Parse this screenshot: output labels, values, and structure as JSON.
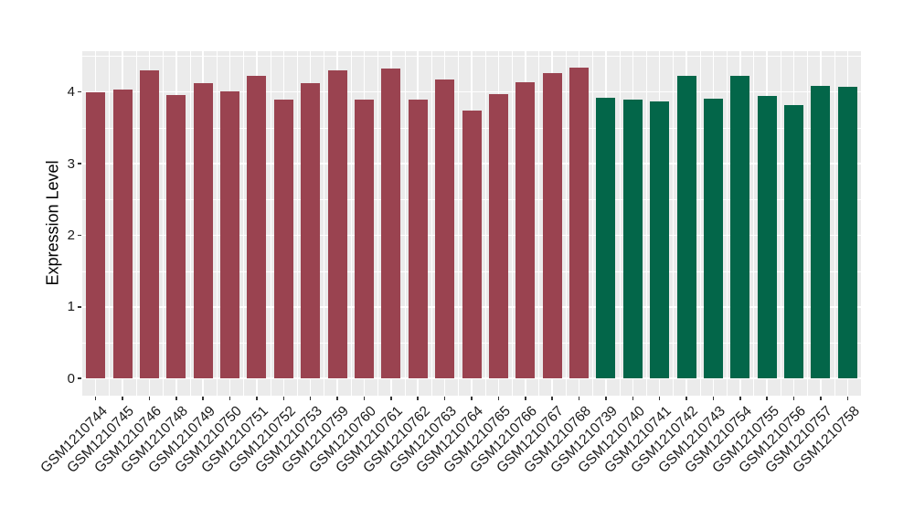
{
  "chart_data": {
    "type": "bar",
    "title": "",
    "xlabel": "",
    "ylabel": "Expression Level",
    "categories": [
      "GSM1210744",
      "GSM1210745",
      "GSM1210746",
      "GSM1210748",
      "GSM1210749",
      "GSM1210750",
      "GSM1210751",
      "GSM1210752",
      "GSM1210753",
      "GSM1210759",
      "GSM1210760",
      "GSM1210761",
      "GSM1210762",
      "GSM1210763",
      "GSM1210764",
      "GSM1210765",
      "GSM1210766",
      "GSM1210767",
      "GSM1210768",
      "GSM1210739",
      "GSM1210740",
      "GSM1210741",
      "GSM1210742",
      "GSM1210743",
      "GSM1210754",
      "GSM1210755",
      "GSM1210756",
      "GSM1210757",
      "GSM1210758"
    ],
    "values": [
      3.99,
      4.03,
      4.3,
      3.96,
      4.12,
      4.01,
      4.22,
      3.9,
      4.12,
      4.3,
      3.89,
      4.33,
      3.89,
      4.18,
      3.74,
      3.97,
      4.13,
      4.26,
      4.34,
      3.92,
      3.9,
      3.87,
      4.23,
      3.91,
      4.22,
      3.94,
      3.82,
      4.08,
      4.07
    ],
    "groups": [
      "crimson",
      "crimson",
      "crimson",
      "crimson",
      "crimson",
      "crimson",
      "crimson",
      "crimson",
      "crimson",
      "crimson",
      "crimson",
      "crimson",
      "crimson",
      "crimson",
      "crimson",
      "crimson",
      "crimson",
      "crimson",
      "crimson",
      "green",
      "green",
      "green",
      "green",
      "green",
      "green",
      "green",
      "green",
      "green",
      "green"
    ],
    "group_colors": {
      "crimson": "#9A4350",
      "green": "#036649"
    },
    "yticks": [
      0,
      1,
      2,
      3,
      4
    ],
    "ytick_labels": [
      "0",
      "1",
      "2",
      "3",
      "4"
    ],
    "yminor": [
      0.5,
      1.5,
      2.5,
      3.5,
      4.5
    ],
    "ylim": [
      -0.24,
      4.57
    ],
    "grid": true,
    "legend_position": "none",
    "panel_background": "#EBEBEB",
    "grid_color": "#FFFFFF",
    "tick_color": "#333333",
    "text_color": "#1A1A1A"
  }
}
